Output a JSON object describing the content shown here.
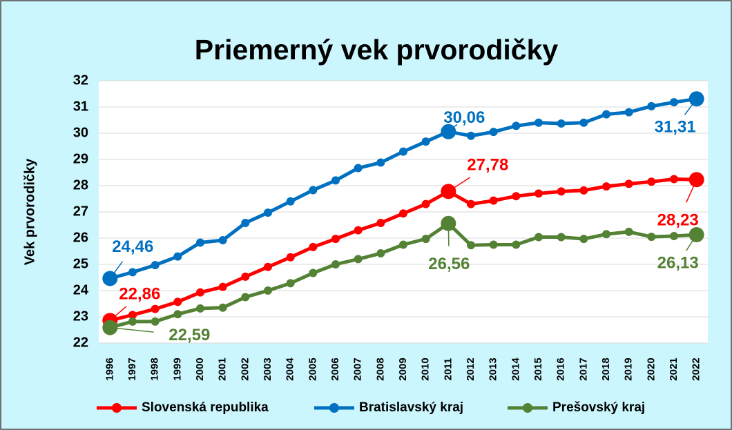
{
  "chart_data": {
    "type": "line",
    "title": "Priemerný vek prvorodičky",
    "y_label": "Vek prvorodičky",
    "categories": [
      "1996",
      "1997",
      "1998",
      "1999",
      "2000",
      "2001",
      "2002",
      "2003",
      "2004",
      "2005",
      "2006",
      "2007",
      "2008",
      "2009",
      "2010",
      "2011",
      "2012",
      "2013",
      "2014",
      "2015",
      "2016",
      "2017",
      "2018",
      "2019",
      "2020",
      "2021",
      "2022"
    ],
    "ylim": [
      22,
      32
    ],
    "yticks": [
      22,
      23,
      24,
      25,
      26,
      27,
      28,
      29,
      30,
      31,
      32
    ],
    "grid": true,
    "legend": "bottom",
    "series": [
      {
        "name": "Slovenská republika",
        "color": "#ff0000",
        "values": [
          22.86,
          23.07,
          23.3,
          23.57,
          23.93,
          24.14,
          24.53,
          24.9,
          25.27,
          25.66,
          25.97,
          26.3,
          26.58,
          26.94,
          27.3,
          27.78,
          27.3,
          27.43,
          27.6,
          27.7,
          27.78,
          27.82,
          27.97,
          28.07,
          28.15,
          28.25,
          28.23
        ],
        "value_labels": [
          "22,86",
          null,
          null,
          null,
          null,
          null,
          null,
          null,
          null,
          null,
          null,
          null,
          null,
          null,
          null,
          "27,78",
          null,
          null,
          null,
          null,
          null,
          null,
          null,
          null,
          null,
          null,
          "28,23"
        ]
      },
      {
        "name": "Bratislavský kraj",
        "color": "#0070c0",
        "values": [
          24.46,
          24.7,
          24.97,
          25.3,
          25.83,
          25.92,
          26.58,
          26.97,
          27.4,
          27.83,
          28.2,
          28.67,
          28.88,
          29.3,
          29.68,
          30.06,
          29.9,
          30.05,
          30.28,
          30.4,
          30.37,
          30.4,
          30.72,
          30.8,
          31.03,
          31.18,
          31.31
        ],
        "value_labels": [
          "24,46",
          null,
          null,
          null,
          null,
          null,
          null,
          null,
          null,
          null,
          null,
          null,
          null,
          null,
          null,
          "30,06",
          null,
          null,
          null,
          null,
          null,
          null,
          null,
          null,
          null,
          null,
          "31,31"
        ]
      },
      {
        "name": "Prešovský kraj",
        "color": "#548235",
        "values": [
          22.59,
          22.82,
          22.82,
          23.1,
          23.32,
          23.35,
          23.75,
          24.0,
          24.28,
          24.67,
          25.0,
          25.2,
          25.42,
          25.75,
          25.97,
          26.56,
          25.73,
          25.75,
          25.75,
          26.04,
          26.04,
          25.97,
          26.15,
          26.24,
          26.05,
          26.08,
          26.13
        ],
        "value_labels": [
          "22,59",
          null,
          null,
          null,
          null,
          null,
          null,
          null,
          null,
          null,
          null,
          null,
          null,
          null,
          null,
          "26,56",
          null,
          null,
          null,
          null,
          null,
          null,
          null,
          null,
          null,
          null,
          "26,13"
        ]
      }
    ]
  }
}
